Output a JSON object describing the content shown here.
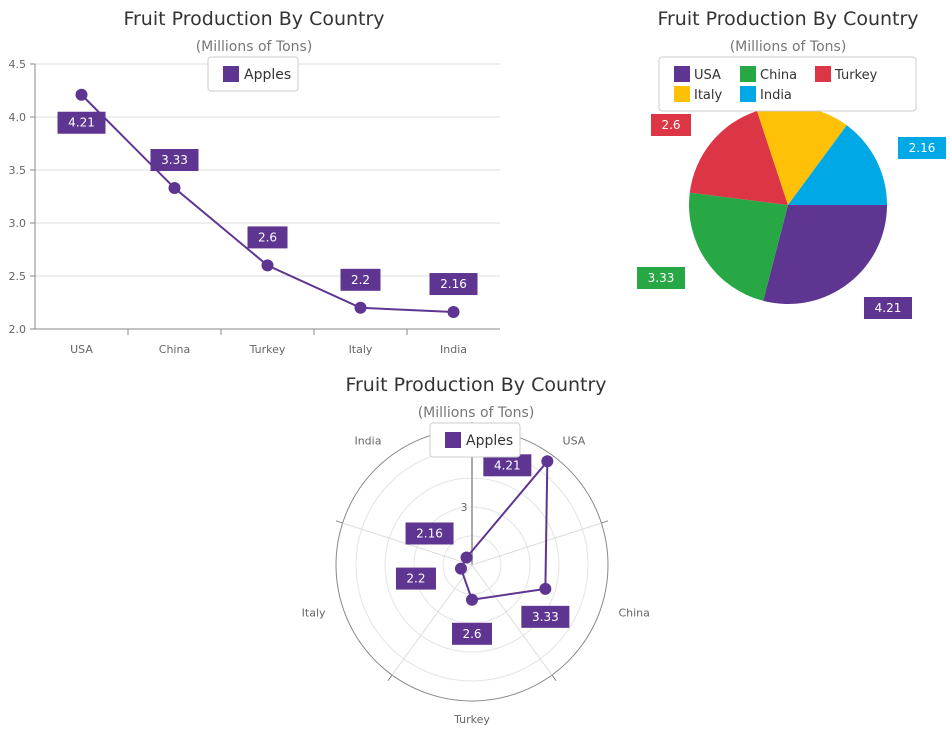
{
  "colors": {
    "series": "#5e3591",
    "USA": "#5e3591",
    "China": "#28a745",
    "Turkey": "#dc3545",
    "Italy": "#ffc107",
    "India": "#00a8e6"
  },
  "chart_data": [
    {
      "type": "line",
      "title": "Fruit Production By Country",
      "subtitle": "(Millions of Tons)",
      "categories": [
        "USA",
        "China",
        "Turkey",
        "Italy",
        "India"
      ],
      "series": [
        {
          "name": "Apples",
          "values": [
            4.21,
            3.33,
            2.6,
            2.2,
            2.16
          ]
        }
      ],
      "ylim": [
        2.0,
        4.5
      ],
      "yticks": [
        "2.0",
        "2.5",
        "3.0",
        "3.5",
        "4.0",
        "4.5"
      ],
      "grid": true,
      "legend": "top"
    },
    {
      "type": "pie",
      "title": "Fruit Production By Country",
      "subtitle": "(Millions of Tons)",
      "categories": [
        "USA",
        "China",
        "Turkey",
        "Italy",
        "India"
      ],
      "values": [
        4.21,
        3.33,
        2.6,
        2.2,
        2.16
      ],
      "data_labels": [
        "4.21",
        "3.33",
        "2.6",
        "",
        "2.16"
      ],
      "legend": "top"
    },
    {
      "type": "radar",
      "title": "Fruit Production By Country",
      "subtitle": "(Millions of Tons)",
      "categories": [
        "USA",
        "China",
        "Turkey",
        "Italy",
        "India"
      ],
      "series": [
        {
          "name": "Apples",
          "values": [
            4.21,
            3.33,
            2.6,
            2.2,
            2.16
          ]
        }
      ],
      "rlim": [
        2.0,
        4.35
      ],
      "rticks": [
        "3"
      ],
      "legend": "top"
    }
  ]
}
